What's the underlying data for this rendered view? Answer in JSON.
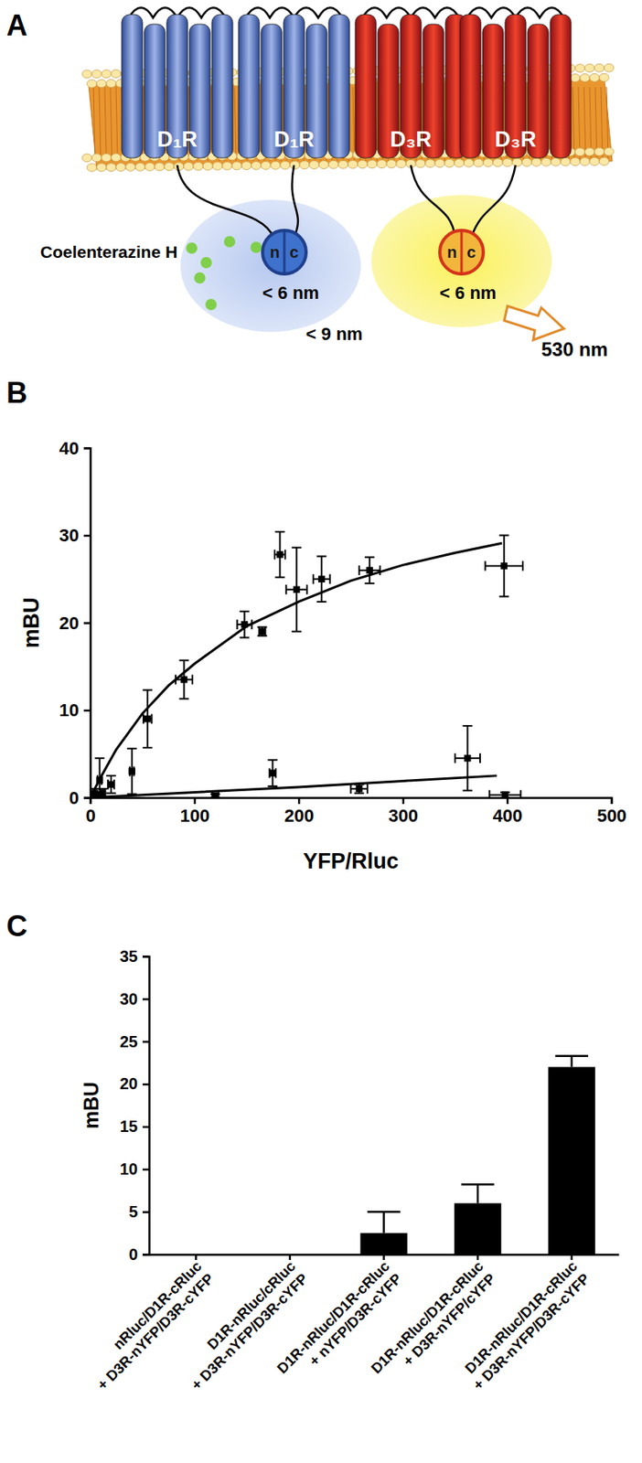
{
  "diagram": {
    "panel": "A",
    "receptors": [
      "D₁R",
      "D₁R",
      "D₃R",
      "D₃R"
    ],
    "substrate": "Coelenterazine H",
    "probes": [
      {
        "halves": [
          "n",
          "c"
        ],
        "distance": "< 6 nm"
      },
      {
        "halves": [
          "n",
          "c"
        ],
        "distance": "< 6 nm"
      }
    ],
    "distance": "< 9 nm",
    "emission": "530 nm"
  },
  "chart_data": [
    {
      "type": "scatter",
      "panel": "B",
      "x_label": "YFP/Rluc",
      "y_label": "mBU",
      "xlim": [
        0,
        500
      ],
      "xticks": [
        0,
        100,
        200,
        300,
        400,
        500
      ],
      "ylim": [
        0,
        40
      ],
      "yticks": [
        0,
        10,
        20,
        30,
        40
      ],
      "series": [
        {
          "type": "scatter",
          "color": "#000000",
          "marker": "square",
          "x": [
            4,
            9,
            20,
            40,
            55,
            90,
            148,
            165,
            182,
            198,
            222,
            268,
            397
          ],
          "x_errors": [
            0.5,
            2,
            3,
            2,
            4,
            8,
            7,
            3,
            5,
            10,
            8,
            10,
            18
          ],
          "values": [
            0.5,
            2,
            1.5,
            3,
            9,
            13.5,
            19.8,
            19,
            27.8,
            23.8,
            25,
            26,
            26.5
          ],
          "errors": [
            0.5,
            2.5,
            1,
            2.6,
            3.3,
            2.2,
            1.5,
            0.5,
            2.6,
            4.8,
            2.6,
            1.5,
            3.5
          ]
        },
        {
          "type": "scatter",
          "color": "#000000",
          "marker": "square",
          "x": [
            6,
            12,
            120,
            175,
            258,
            362,
            398
          ],
          "x_errors": [
            1,
            2,
            3,
            3,
            8,
            12,
            15
          ],
          "values": [
            0.3,
            0.5,
            0.2,
            2.8,
            1,
            4.5,
            0.3
          ],
          "errors": [
            0.3,
            0.5,
            0.2,
            1.5,
            0.5,
            3.7,
            0.3
          ]
        },
        {
          "type": "line",
          "color": "#000000",
          "line_style": "solid",
          "x": [
            0,
            10,
            25,
            50,
            75,
            100,
            150,
            200,
            250,
            300,
            350,
            395
          ],
          "values": [
            0,
            2.3,
            5.5,
            9.6,
            12.8,
            15.3,
            19.6,
            22.4,
            24.8,
            26.6,
            28,
            29.1
          ]
        },
        {
          "type": "line",
          "color": "#000000",
          "line_style": "solid",
          "x": [
            0,
            100,
            200,
            300,
            390
          ],
          "values": [
            0,
            0.6,
            1.2,
            1.9,
            2.5
          ]
        }
      ]
    },
    {
      "type": "bar",
      "panel": "C",
      "y_label": "mBU",
      "color": "#000000",
      "categories": [
        "nRluc/D1R-cRluc\n+ D3R-nYFP/D3R-cYFP",
        "D1R-nRluc/cRluc\n+ D3R-nYFP/D3R-cYFP",
        "D1R-nRluc/D1R-cRluc\n+ nYFP/D3R-cYFP",
        "D1R-nRluc/D1R-cRluc\n+ D3R-nYFP/cYFP",
        "D1R-nRluc/D1R-cRluc\n+ D3R-nYFP/D3R-cYFP"
      ],
      "values": [
        0,
        0,
        2.5,
        6,
        22
      ],
      "errors": [
        0,
        0,
        2.5,
        2.2,
        1.3
      ],
      "ylim": [
        0,
        35
      ],
      "yticks": [
        0,
        5,
        10,
        15,
        20,
        25,
        30,
        35
      ]
    }
  ]
}
